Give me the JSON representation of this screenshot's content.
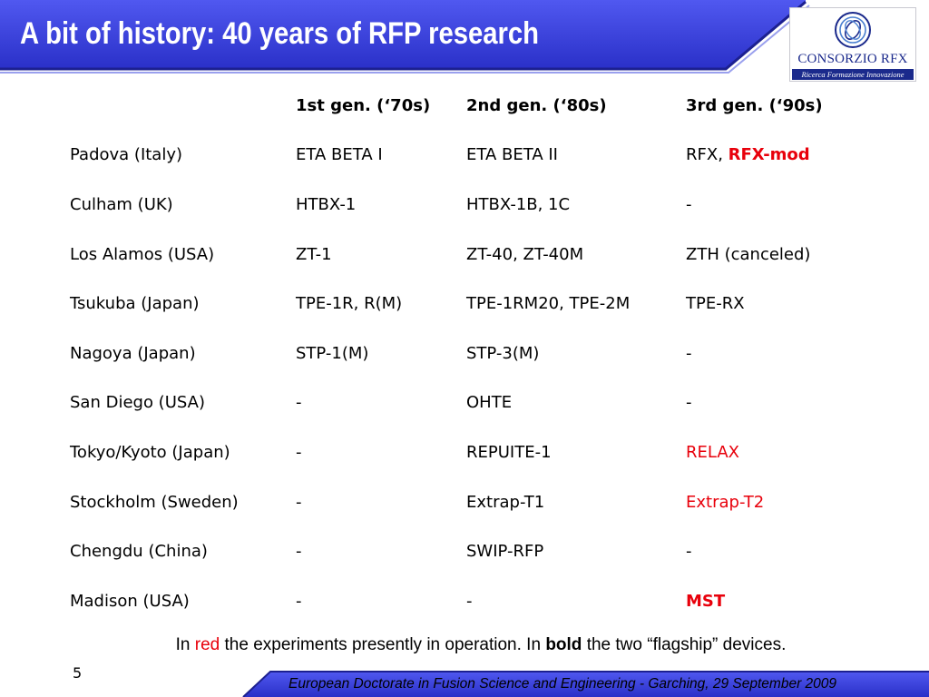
{
  "slide": {
    "title": "A bit of history: 40 years of RFP research",
    "page_number": "5",
    "footer": "European Doctorate in Fusion Science and Engineering  -  Garching, 29 September 2009",
    "colors": {
      "banner": "#3b41dc",
      "accent": "#e8000b",
      "logo_blue": "#1b2a8c"
    }
  },
  "logo": {
    "name": "CONSORZIO RFX",
    "subtitle": "Ricerca Formazione Innovazione"
  },
  "table": {
    "headers": [
      "",
      "1st gen. (‘70s)",
      "2nd gen. (‘80s)",
      "3rd gen. (‘90s)"
    ],
    "rows": [
      {
        "site": "Padova (Italy)",
        "gen1": "ETA BETA I",
        "gen2": "ETA BETA II",
        "gen3_prefix": "RFX, ",
        "gen3": "RFX-mod",
        "gen3_style": "red-bold"
      },
      {
        "site": "Culham (UK)",
        "gen1": "HTBX-1",
        "gen2": "HTBX-1B, 1C",
        "gen3_prefix": "",
        "gen3": "-",
        "gen3_style": "normal"
      },
      {
        "site": "Los Alamos (USA)",
        "gen1": "ZT-1",
        "gen2": "ZT-40, ZT-40M",
        "gen3_prefix": "",
        "gen3": "ZTH (canceled)",
        "gen3_style": "normal"
      },
      {
        "site": "Tsukuba (Japan)",
        "gen1": "TPE-1R, R(M)",
        "gen2": "TPE-1RM20, TPE-2M",
        "gen3_prefix": "",
        "gen3": "TPE-RX",
        "gen3_style": "normal"
      },
      {
        "site": "Nagoya (Japan)",
        "gen1": "STP-1(M)",
        "gen2": "STP-3(M)",
        "gen3_prefix": "",
        "gen3": "-",
        "gen3_style": "normal"
      },
      {
        "site": "San Diego (USA)",
        "gen1": "-",
        "gen2": "OHTE",
        "gen3_prefix": "",
        "gen3": "-",
        "gen3_style": "normal"
      },
      {
        "site": "Tokyo/Kyoto (Japan)",
        "gen1": "-",
        "gen2": "REPUITE-1",
        "gen3_prefix": "",
        "gen3": "RELAX",
        "gen3_style": "red"
      },
      {
        "site": "Stockholm (Sweden)",
        "gen1": "-",
        "gen2": "Extrap-T1",
        "gen3_prefix": "",
        "gen3": "Extrap-T2",
        "gen3_style": "red"
      },
      {
        "site": "Chengdu (China)",
        "gen1": "-",
        "gen2": "SWIP-RFP",
        "gen3_prefix": "",
        "gen3": "-",
        "gen3_style": "normal"
      },
      {
        "site": "Madison (USA)",
        "gen1": "-",
        "gen2": "-",
        "gen3_prefix": "",
        "gen3": "MST",
        "gen3_style": "red-bold"
      }
    ]
  },
  "note": {
    "part1": "In ",
    "red_word": "red",
    "part2": " the experiments presently in operation. In ",
    "bold_word": "bold",
    "part3": " the two “flagship” devices."
  }
}
